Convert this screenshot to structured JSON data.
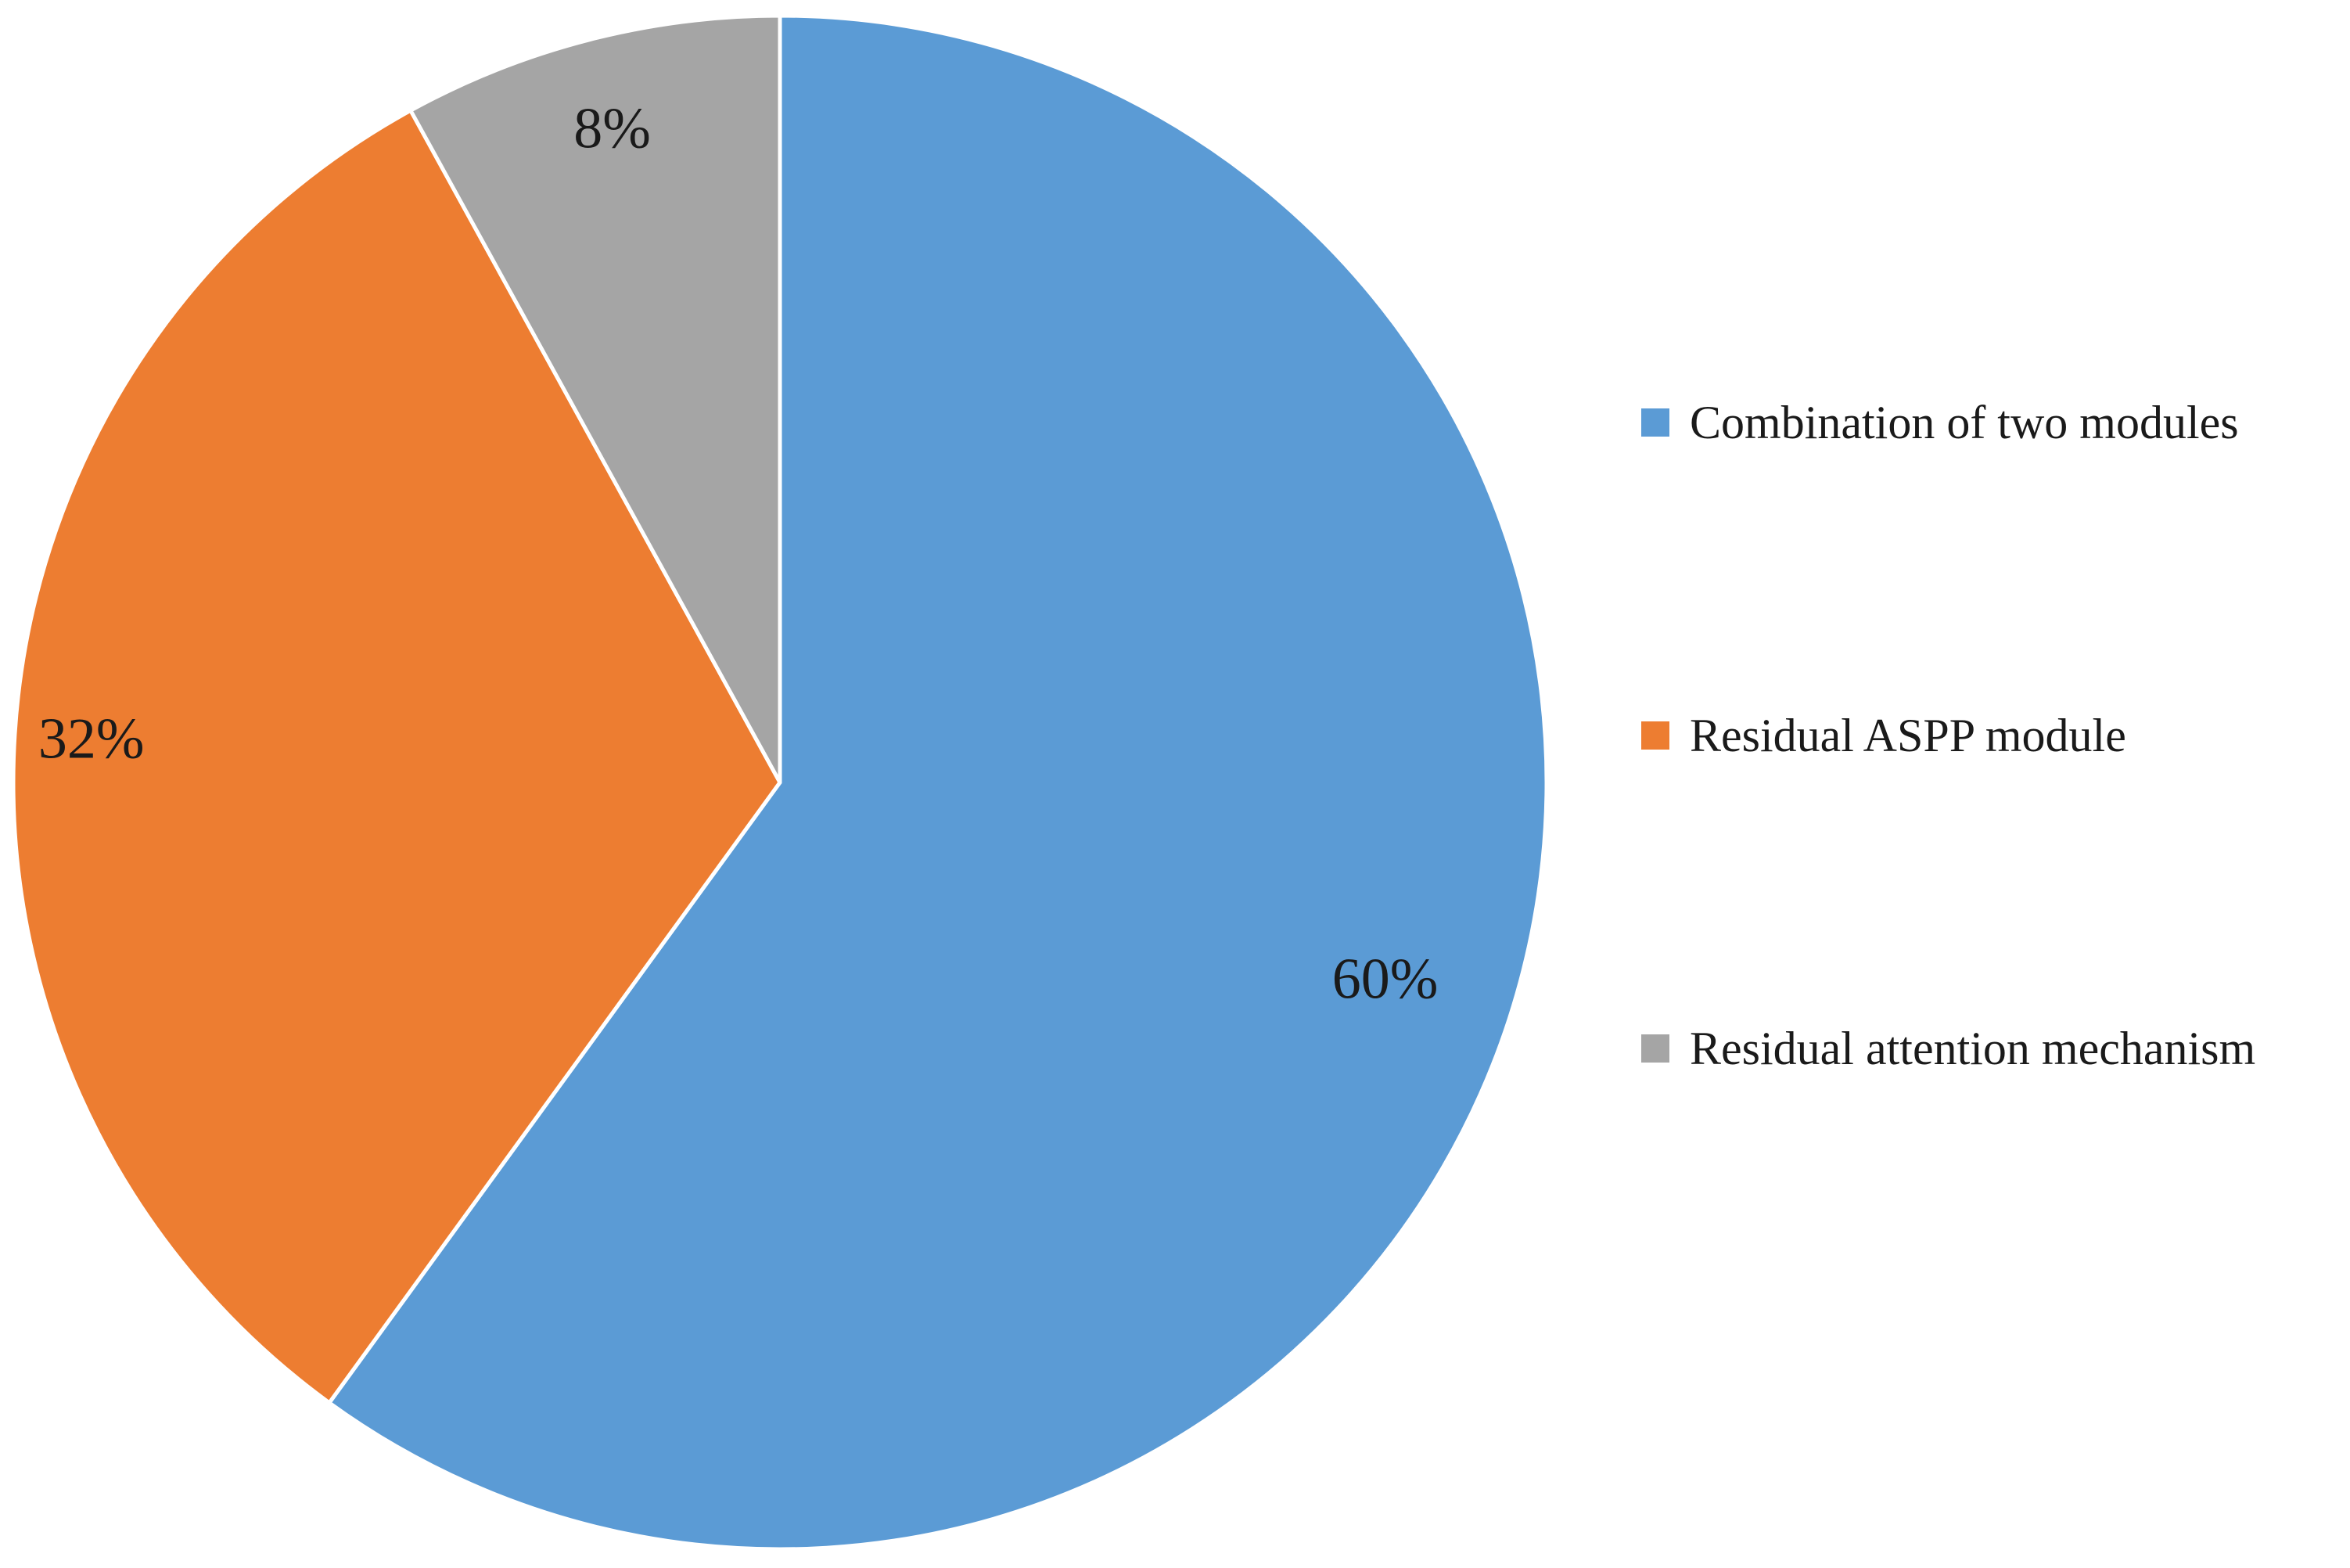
{
  "chart_data": {
    "type": "pie",
    "start_angle_deg": 0,
    "direction": "clockwise",
    "legend_position": "right",
    "slices": [
      {
        "label": "Combination of two modules",
        "value": 60,
        "value_label": "60%",
        "color": "#5B9BD5"
      },
      {
        "label": "Residual ASPP module",
        "value": 32,
        "value_label": "32%",
        "color": "#ED7D31"
      },
      {
        "label": "Residual attention mechanism",
        "value": 8,
        "value_label": "8%",
        "color": "#A5A5A5"
      }
    ]
  }
}
